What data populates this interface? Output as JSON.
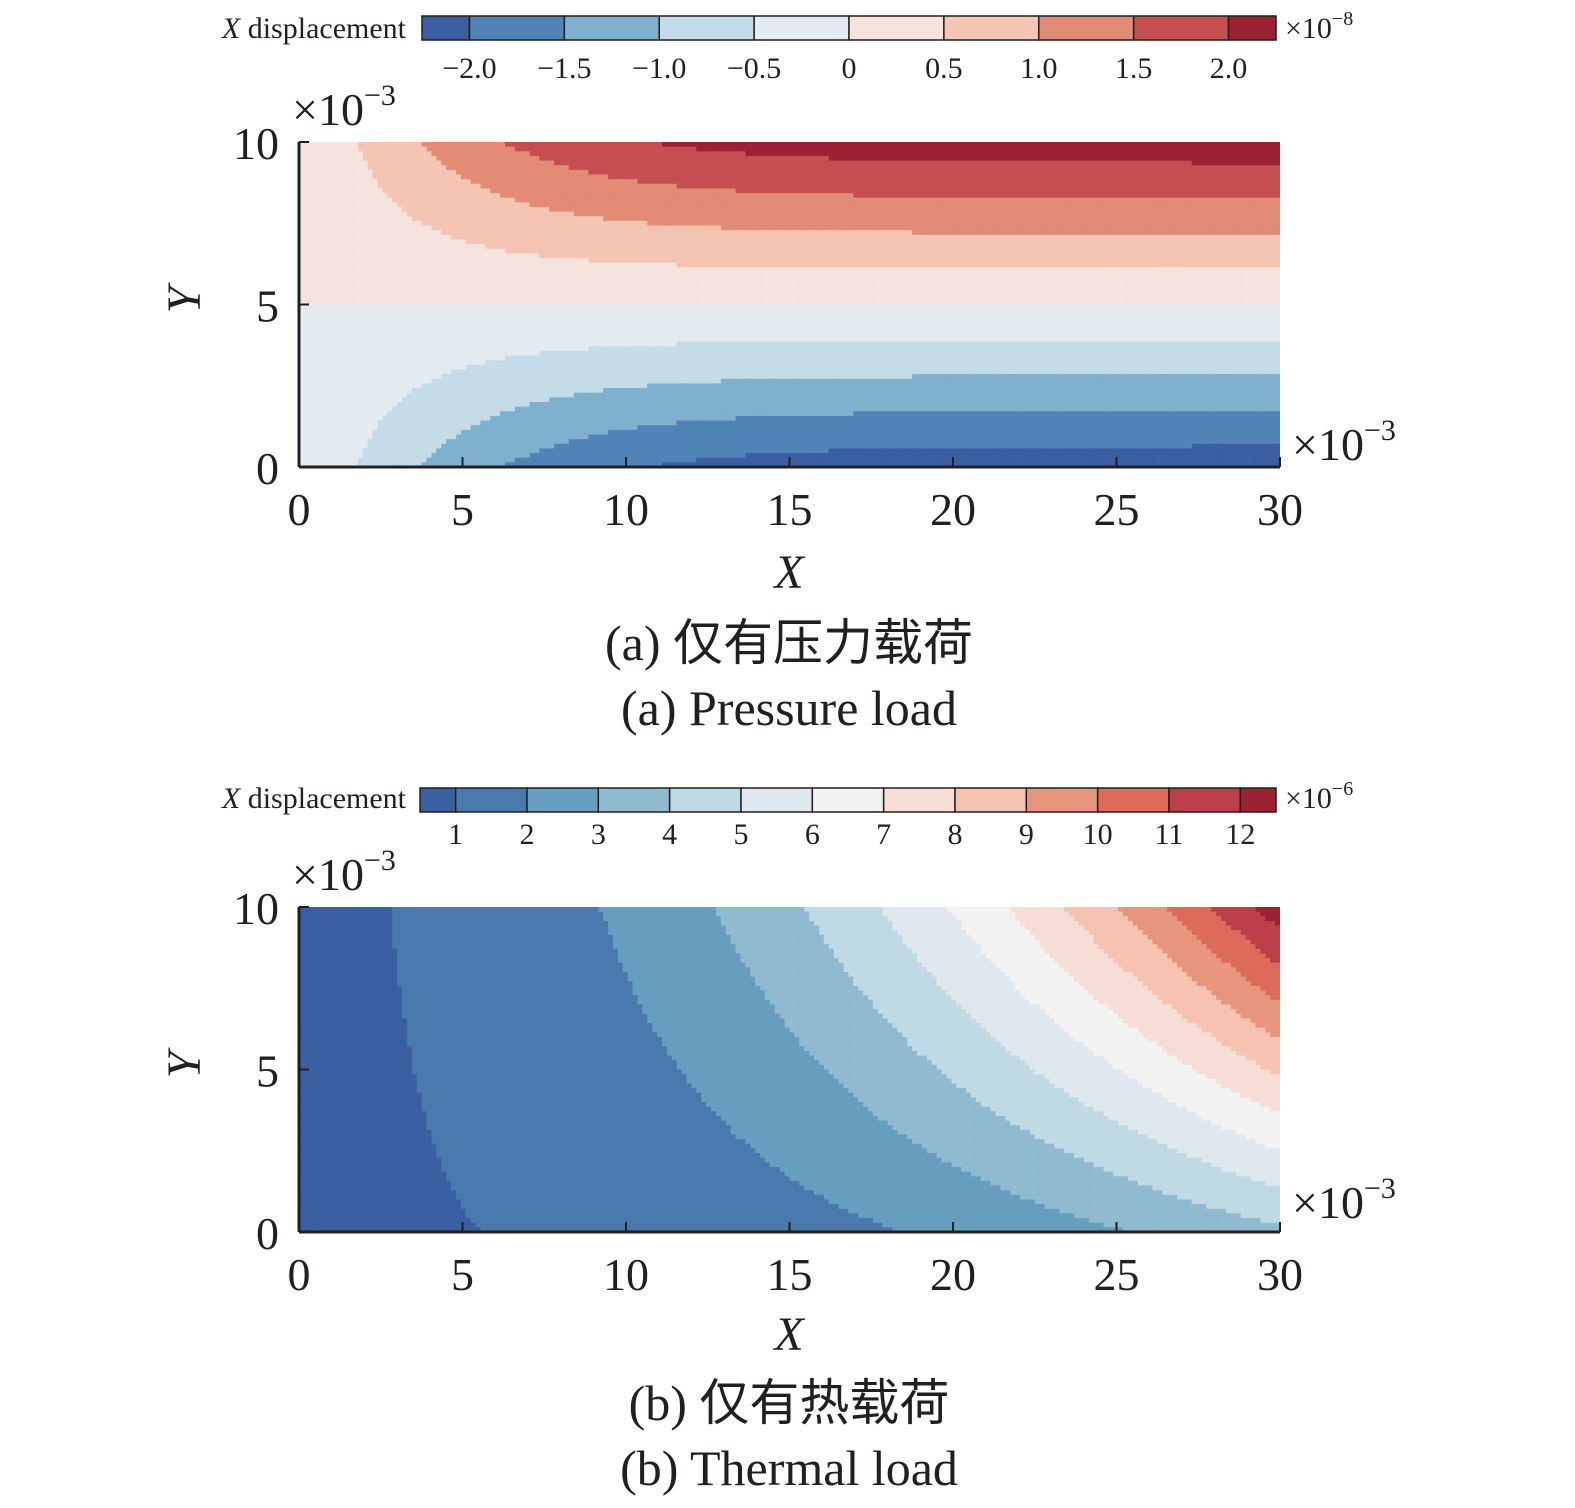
{
  "chart_data": [
    {
      "type": "heatmap",
      "id": "a",
      "caption_cn": "(a) 仅有压力载荷",
      "caption_en": "(a) Pressure load",
      "xlabel": "X",
      "ylabel": "Y",
      "x_multiplier": "×10",
      "x_multiplier_exp": "−3",
      "y_multiplier": "×10",
      "y_multiplier_exp": "−3",
      "xlim": [
        0,
        30
      ],
      "ylim": [
        0,
        10
      ],
      "x_ticks": [
        "0",
        "5",
        "10",
        "15",
        "20",
        "25",
        "30"
      ],
      "y_ticks": [
        "0",
        "5",
        "10"
      ],
      "colorbar": {
        "label_var": "X",
        "label_text": " displacement",
        "multiplier": "×10",
        "multiplier_exp": "−8",
        "tick_labels": [
          "−2.0",
          "−1.5",
          "−1.0",
          "−0.5",
          "0",
          "0.5",
          "1.0",
          "1.5",
          "2.0"
        ],
        "levels": [
          -2.25,
          -2.0,
          -1.5,
          -1.0,
          -0.5,
          0.0,
          0.5,
          1.0,
          1.5,
          2.0,
          2.25
        ],
        "colors": [
          "#3a5fa2",
          "#5184b6",
          "#7fb0cd",
          "#c3dce7",
          "#e3ebf1",
          "#f6e3dd",
          "#f5c5b3",
          "#e38b74",
          "#c54e51",
          "#9a2233"
        ]
      },
      "field": "u = 2.3e-8 * tanh(x/8) * (y/10 - 0.5) * 2",
      "grid": false
    },
    {
      "type": "heatmap",
      "id": "b",
      "caption_cn": "(b) 仅有热载荷",
      "caption_en": "(b) Thermal load",
      "xlabel": "X",
      "ylabel": "Y",
      "x_multiplier": "×10",
      "x_multiplier_exp": "−3",
      "y_multiplier": "×10",
      "y_multiplier_exp": "−3",
      "xlim": [
        0,
        30
      ],
      "ylim": [
        0,
        10
      ],
      "x_ticks": [
        "0",
        "5",
        "10",
        "15",
        "20",
        "25",
        "30"
      ],
      "y_ticks": [
        "0",
        "5",
        "10"
      ],
      "colorbar": {
        "label_var": "X",
        "label_text": " displacement",
        "multiplier": "×10",
        "multiplier_exp": "−6",
        "tick_labels": [
          "1",
          "2",
          "3",
          "4",
          "5",
          "6",
          "7",
          "8",
          "9",
          "10",
          "11",
          "12"
        ],
        "levels": [
          0.5,
          1,
          2,
          3,
          4,
          5,
          6,
          7,
          8,
          9,
          10,
          11,
          12,
          12.5
        ],
        "colors": [
          "#3a60a2",
          "#4a7aad",
          "#669ec0",
          "#8fbad0",
          "#c0dae5",
          "#dfe8ef",
          "#f2f2f2",
          "#f6ddd6",
          "#f5c3b0",
          "#e8957e",
          "#dd6b59",
          "#bc3f4a",
          "#9a2233"
        ]
      },
      "field": "u = thermal displacement increasing with x and y",
      "grid": false
    }
  ]
}
